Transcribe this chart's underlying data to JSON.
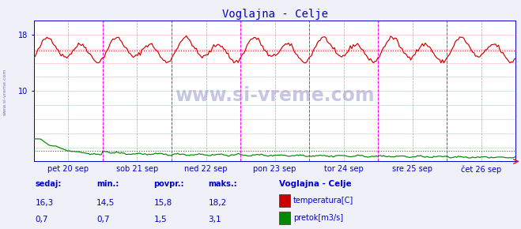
{
  "title": "Voglajna - Celje",
  "title_color": "#0000cc",
  "bg_color": "#f0f0f8",
  "plot_bg_color": "#ffffff",
  "grid_color": "#ffaaaa",
  "axis_color": "#0000cc",
  "tick_color": "#0000cc",
  "ylim": [
    0,
    20
  ],
  "temp_color": "#cc0000",
  "flow_color": "#008800",
  "avg_temp_color": "#cc0000",
  "avg_flow_color": "#008800",
  "avg_temp": 15.8,
  "avg_flow": 1.5,
  "x_labels": [
    "pet 20 sep",
    "sob 21 sep",
    "ned 22 sep",
    "pon 23 sep",
    "tor 24 sep",
    "sre 25 sep",
    "čet 26 sep"
  ],
  "watermark": "www.si-vreme.com",
  "legend_title": "Voglajna - Celje",
  "legend_items": [
    {
      "label": "temperatura[C]",
      "color": "#cc0000"
    },
    {
      "label": "pretok[m3/s]",
      "color": "#008800"
    }
  ],
  "stats": {
    "headers": [
      "sedaj:",
      "min.:",
      "povpr.:",
      "maks.:"
    ],
    "temp_vals": [
      "16,3",
      "14,5",
      "15,8",
      "18,2"
    ],
    "flow_vals": [
      "0,7",
      "0,7",
      "1,5",
      "3,1"
    ]
  },
  "n_points": 336,
  "temp_base": 15.8,
  "flow_base": 1.5
}
